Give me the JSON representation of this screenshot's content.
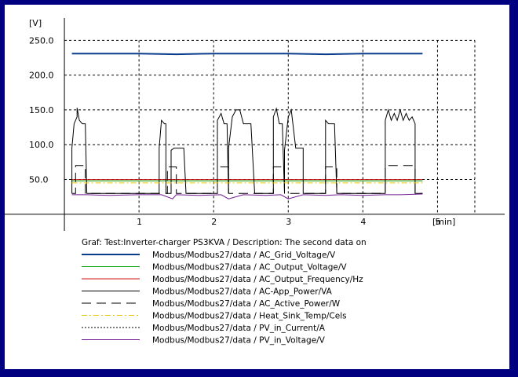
{
  "chart_data": {
    "type": "line",
    "title": "Graf: Test:Inverter-charger PS3KVA / Description: The second data on",
    "ylabel": "[V]",
    "xunit": "[min]",
    "xlim": [
      -0.8,
      5.9
    ],
    "ylim": [
      -15,
      290
    ],
    "yticks": [
      50,
      100,
      150,
      200,
      250
    ],
    "ytick_labels": [
      "50.0",
      "100.0",
      "150.0",
      "200.0",
      "250.0"
    ],
    "xticks": [
      1,
      2,
      3,
      4,
      5
    ],
    "xtick_labels": [
      "1",
      "2",
      "3",
      "4",
      "5"
    ],
    "grid": true,
    "legend_position": "bottom",
    "series": [
      {
        "name": "Modbus/Modbus27/data / AC_Grid_Voltage/V",
        "color": "#0a3c8c",
        "style": "solid-thick",
        "x": [
          0.1,
          0.5,
          1.0,
          1.5,
          2.0,
          2.5,
          3.0,
          3.5,
          4.0,
          4.5,
          4.8
        ],
        "y": [
          231,
          231,
          231,
          230,
          231,
          231,
          231,
          230,
          231,
          231,
          231
        ]
      },
      {
        "name": "Modbus/Modbus27/data / AC_Output_Voltage/V",
        "color": "#00a000",
        "style": "solid",
        "x": [
          0.1,
          4.8
        ],
        "y": [
          48,
          48
        ]
      },
      {
        "name": "Modbus/Modbus27/data / AC_Output_Frequency/Hz",
        "color": "#d01010",
        "style": "solid",
        "x": [
          0.1,
          4.8
        ],
        "y": [
          49.8,
          49.8
        ]
      },
      {
        "name": "Modbus/Modbus27/data / AC-App_Power/VA",
        "color": "#000000",
        "style": "solid",
        "x": [
          0.1,
          0.1,
          0.13,
          0.17,
          0.17,
          0.2,
          0.24,
          0.28,
          0.3,
          0.3,
          1.27,
          1.27,
          1.3,
          1.34,
          1.36,
          1.36,
          1.43,
          1.43,
          1.47,
          1.6,
          1.63,
          2.05,
          2.05,
          2.1,
          2.14,
          2.18,
          2.2,
          2.2,
          2.25,
          2.3,
          2.35,
          2.4,
          2.5,
          2.55,
          2.55,
          2.8,
          2.8,
          2.84,
          2.88,
          2.92,
          2.95,
          2.95,
          3.0,
          3.04,
          3.1,
          3.2,
          3.2,
          3.5,
          3.5,
          3.54,
          3.58,
          3.62,
          3.65,
          3.65,
          4.3,
          4.3,
          4.34,
          4.38,
          4.42,
          4.46,
          4.5,
          4.54,
          4.58,
          4.62,
          4.66,
          4.7,
          4.7,
          4.8
        ],
        "y": [
          30,
          95,
          130,
          140,
          153,
          135,
          130,
          130,
          30,
          30,
          30,
          95,
          135,
          130,
          130,
          30,
          30,
          92,
          95,
          95,
          30,
          30,
          135,
          145,
          130,
          130,
          30,
          95,
          140,
          150,
          150,
          130,
          130,
          30,
          30,
          30,
          140,
          152,
          130,
          130,
          30,
          92,
          140,
          150,
          95,
          95,
          30,
          30,
          135,
          130,
          130,
          130,
          30,
          30,
          30,
          135,
          150,
          135,
          145,
          135,
          150,
          135,
          145,
          135,
          140,
          130,
          30,
          30
        ]
      },
      {
        "name": "Modbus/Modbus27/data / AC_Active_Power/W",
        "color": "#000000",
        "style": "dashed",
        "x": [
          0.1,
          0.15,
          0.15,
          0.28,
          0.28,
          1.38,
          1.38,
          1.5,
          1.5,
          2.05,
          2.05,
          2.2,
          2.2,
          2.55,
          2.55,
          2.8,
          2.8,
          2.95,
          2.95,
          3.2,
          3.2,
          3.5,
          3.5,
          3.65,
          3.65,
          4.3,
          4.3,
          4.7,
          4.7,
          4.8
        ],
        "y": [
          30,
          30,
          70,
          70,
          30,
          30,
          68,
          68,
          30,
          30,
          68,
          68,
          30,
          30,
          30,
          30,
          68,
          68,
          30,
          30,
          30,
          30,
          68,
          68,
          30,
          30,
          70,
          70,
          30,
          30
        ]
      },
      {
        "name": "Modbus/Modbus27/data / Heat_Sink_Temp/Cels",
        "color": "#e6c800",
        "style": "dashdot",
        "x": [
          0.1,
          4.8
        ],
        "y": [
          45,
          45
        ]
      },
      {
        "name": "Modbus/Modbus27/data / PV_in_Current/A",
        "color": "#000000",
        "style": "dotted",
        "x": [],
        "y": []
      },
      {
        "name": "Modbus/Modbus27/data / PV_in_Voltage/V",
        "color": "#701890",
        "style": "solid",
        "x": [
          0.1,
          0.3,
          0.6,
          1.0,
          1.3,
          1.45,
          1.5,
          1.8,
          2.1,
          2.2,
          2.4,
          2.7,
          2.9,
          3.0,
          3.2,
          3.5,
          3.7,
          4.0,
          4.3,
          4.5,
          4.8
        ],
        "y": [
          28,
          28,
          27,
          28,
          28,
          22,
          28,
          27,
          28,
          22,
          28,
          27,
          28,
          22,
          28,
          27,
          28,
          27,
          28,
          28,
          29
        ]
      }
    ]
  }
}
